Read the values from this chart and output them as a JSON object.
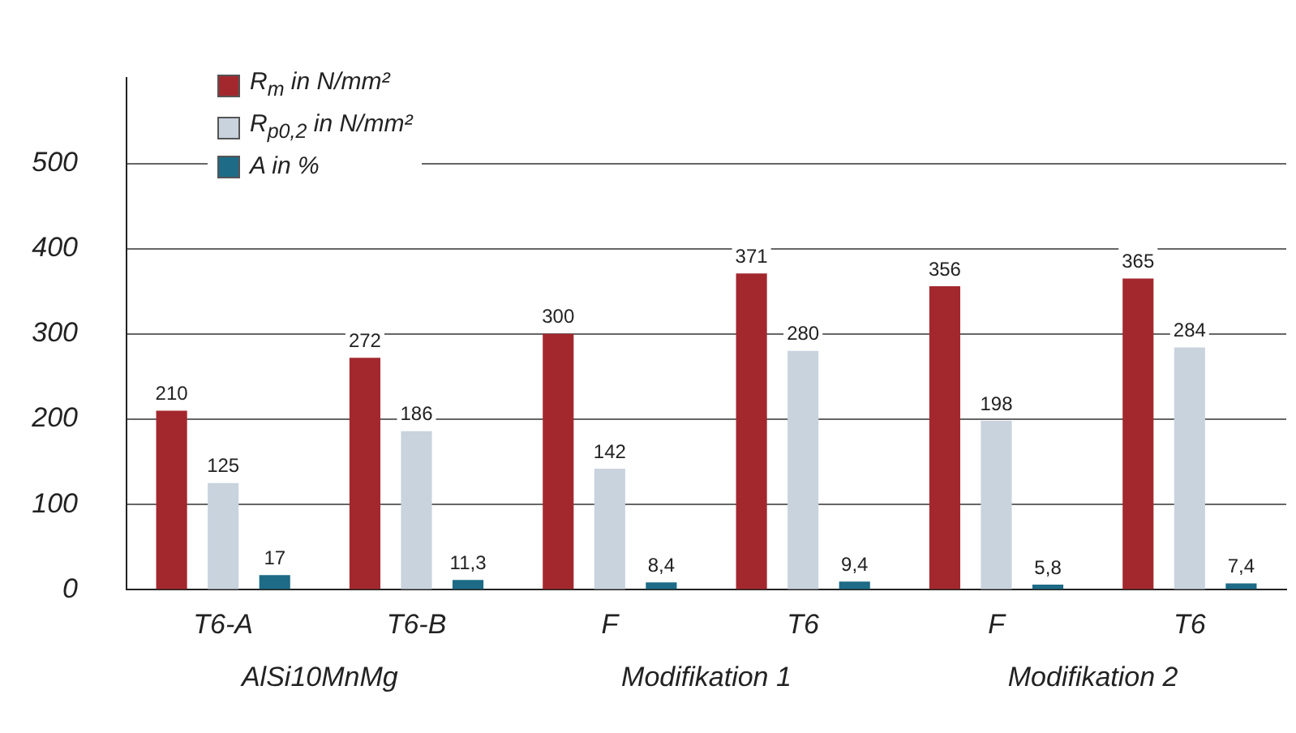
{
  "chart_data": {
    "type": "bar",
    "categories": [
      "T6-A",
      "T6-B",
      "F",
      "T6",
      "F",
      "T6"
    ],
    "series": [
      {
        "name": "R$_{m}$ in N/mm²",
        "color": "#a3282e",
        "values": [
          210,
          272,
          300,
          371,
          356,
          365
        ],
        "value_labels": [
          "210",
          "272",
          "300",
          "371",
          "356",
          "365"
        ]
      },
      {
        "name": "R$_{p0,2}$ in N/mm²",
        "color": "#c9d3de",
        "values": [
          125,
          186,
          142,
          280,
          198,
          284
        ],
        "value_labels": [
          "125",
          "186",
          "142",
          "280",
          "198",
          "284"
        ]
      },
      {
        "name": "A in %",
        "color": "#1d6b86",
        "values": [
          17,
          11.3,
          8.4,
          9.4,
          5.8,
          7.4
        ],
        "value_labels": [
          "17",
          "11,3",
          "8,4",
          "9,4",
          "5,8",
          "7,4"
        ]
      }
    ],
    "ylim": [
      0,
      600
    ],
    "yticks": [
      0,
      100,
      200,
      300,
      400,
      500
    ],
    "grid": "y",
    "legend": "top left",
    "annotations": [
      "AlSi10MnMg",
      "Modifikation 1",
      "Modifikation 2"
    ]
  }
}
